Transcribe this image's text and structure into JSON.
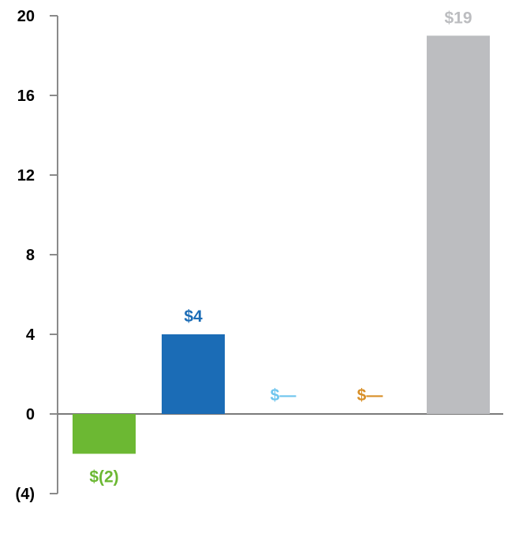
{
  "chart_data": {
    "type": "bar",
    "title": "",
    "xlabel": "",
    "ylabel": "",
    "ylim": [
      -4,
      20
    ],
    "yticks": [
      20,
      16,
      12,
      8,
      4,
      0,
      -4
    ],
    "ytick_labels": [
      "20",
      "16",
      "12",
      "8",
      "4",
      "0",
      "(4)"
    ],
    "grid": false,
    "bars": [
      {
        "value": -2,
        "label": "$(2)",
        "color": "#6cb833"
      },
      {
        "value": 4,
        "label": "$4",
        "color": "#1b6cb6"
      },
      {
        "value": 0,
        "label": "$—",
        "color": "#6ec5ee"
      },
      {
        "value": 0,
        "label": "$—",
        "color": "#d88f27"
      },
      {
        "value": 19,
        "label": "$19",
        "color": "#bcbdc0"
      }
    ]
  }
}
